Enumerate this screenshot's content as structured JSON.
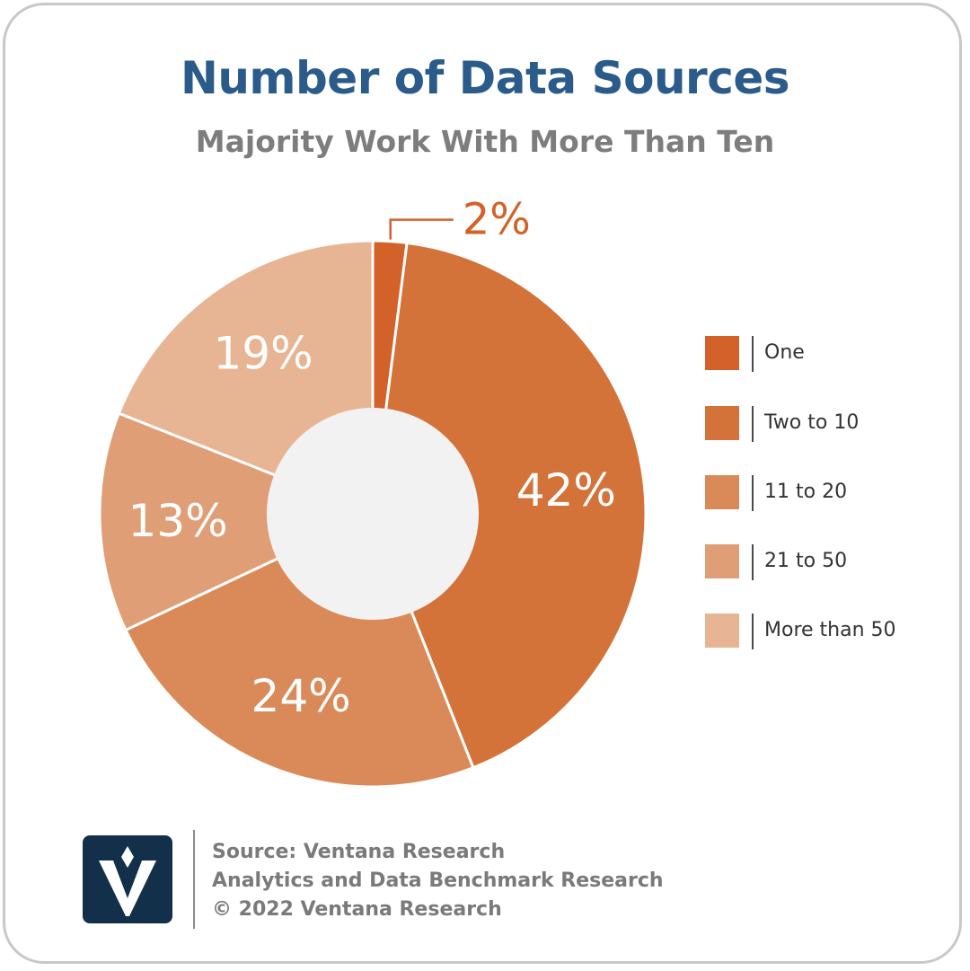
{
  "title": "Number of Data Sources",
  "subtitle": "Majority Work With More Than Ten",
  "chart_data": {
    "type": "pie",
    "donut": true,
    "title": "Number of Data Sources",
    "subtitle": "Majority Work With More Than Ten",
    "categories": [
      "One",
      "Two to 10",
      "11 to 20",
      "21 to 50",
      "More than 50"
    ],
    "values": [
      2,
      42,
      24,
      13,
      19
    ],
    "labels": [
      "2%",
      "42%",
      "24%",
      "13%",
      "19%"
    ],
    "colors": [
      "#d2622a",
      "#d3733a",
      "#da8a58",
      "#e09e76",
      "#e8b594"
    ],
    "legend": "right"
  },
  "footer": {
    "source": "Source: Ventana Research",
    "study": "Analytics and Data Benchmark Research",
    "copyright": "© 2022 Ventana Research"
  },
  "logo": {
    "icon": "ventana-v-logo-icon",
    "color": "#123049"
  }
}
